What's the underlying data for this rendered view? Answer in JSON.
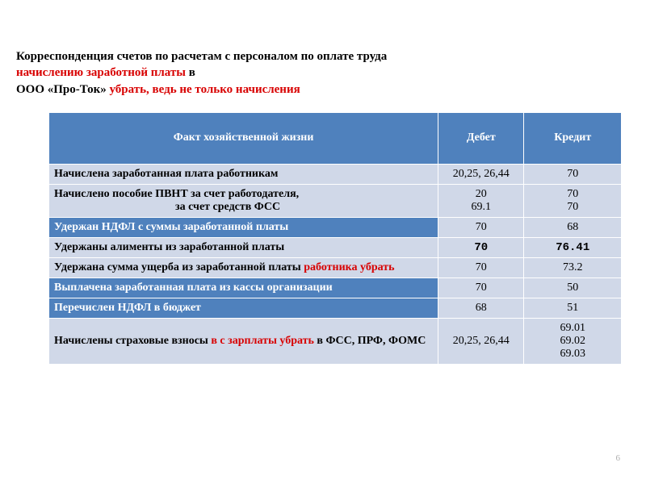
{
  "heading": {
    "line1a": "Корреспонденция счетов по расчетам с персоналом по оплате труда",
    "line2_red": "начислению заработной платы",
    "line2_tail": " в",
    "line3a": "ООО «Про-Ток» ",
    "line3_red": "убрать, ведь не только начисления"
  },
  "table": {
    "head": {
      "desc": "Факт хозяйственной жизни",
      "debit": "Дебет",
      "credit": "Кредит"
    },
    "rows": [
      {
        "style": "light",
        "desc": "Начислена заработанная плата  работникам",
        "debit": "20,25, 26,44",
        "credit": "70"
      },
      {
        "style": "light",
        "desc": "Начислено пособие ПВНТ за счет работодателя,",
        "desc_sub": "за счет средств ФСС",
        "debit": "20\n69.1",
        "credit": "70\n70"
      },
      {
        "style": "dark",
        "desc": "Удержан НДФЛ с суммы заработанной платы",
        "debit": "70",
        "credit": "68"
      },
      {
        "style": "light",
        "desc": "Удержаны алименты из заработанной платы",
        "debit_mono": "70",
        "credit_mono": "76.41"
      },
      {
        "style": "light",
        "desc": "Удержана сумма ущерба из заработанной платы ",
        "desc_red": "работника убрать",
        "debit": "70",
        "credit": "73.2"
      },
      {
        "style": "dark",
        "desc": "Выплачена заработанная плата из кассы организации",
        "debit": "70",
        "credit": "50"
      },
      {
        "style": "dark",
        "desc": "Перечислен НДФЛ в бюджет",
        "debit": "68",
        "credit": "51"
      },
      {
        "style": "light",
        "desc_pre": "Начислены страховые взносы ",
        "desc_red2": "в с зарплаты убрать",
        "desc_post": " в ФСС, ПРФ, ФОМС",
        "debit": "20,25, 26,44",
        "credit": "69.01\n69.02\n69.03"
      }
    ]
  },
  "page_number": "6",
  "colors": {
    "header_bg": "#4f81bd",
    "row_light_bg": "#d0d8e8",
    "red": "#d80000"
  }
}
